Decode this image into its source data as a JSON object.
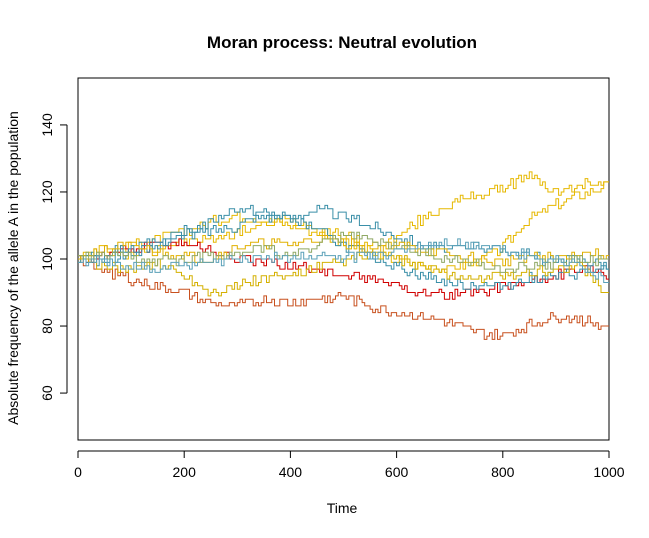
{
  "chart_data": {
    "type": "line",
    "title": "Moran process: Neutral evolution",
    "xlabel": "Time",
    "ylabel": "Absolute frequency of the allele A in the population",
    "xlim": [
      0,
      1000
    ],
    "ylim": [
      46,
      154
    ],
    "xticks": [
      0,
      200,
      400,
      600,
      800,
      1000
    ],
    "yticks": [
      60,
      80,
      100,
      120,
      140
    ],
    "grid": false,
    "legend": "none",
    "series": [
      {
        "color": "#E6B800",
        "x": [
          0,
          50,
          100,
          150,
          200,
          250,
          300,
          350,
          400,
          450,
          500,
          550,
          600,
          650,
          700,
          750,
          800,
          850,
          900,
          950,
          1000
        ],
        "y": [
          100,
          103,
          101,
          104,
          105,
          106,
          108,
          110,
          112,
          109,
          107,
          104,
          106,
          112,
          116,
          119,
          121,
          125,
          120,
          122,
          124
        ]
      },
      {
        "color": "#E6B800",
        "x": [
          0,
          50,
          100,
          150,
          200,
          250,
          300,
          350,
          400,
          450,
          500,
          550,
          600,
          650,
          700,
          750,
          800,
          850,
          900,
          950,
          1000
        ],
        "y": [
          100,
          102,
          104,
          106,
          108,
          111,
          113,
          112,
          110,
          108,
          105,
          102,
          100,
          98,
          97,
          99,
          103,
          112,
          116,
          119,
          122
        ]
      },
      {
        "color": "#C8501E",
        "x": [
          0,
          50,
          100,
          150,
          200,
          250,
          300,
          350,
          400,
          450,
          500,
          550,
          600,
          650,
          700,
          750,
          800,
          850,
          900,
          950,
          1000
        ],
        "y": [
          100,
          97,
          94,
          92,
          90,
          87,
          86,
          88,
          87,
          88,
          89,
          86,
          84,
          83,
          81,
          78,
          77,
          80,
          83,
          82,
          80
        ]
      },
      {
        "color": "#D00000",
        "x": [
          0,
          50,
          100,
          150,
          200,
          250,
          300,
          350,
          400,
          450,
          500,
          550,
          600,
          650,
          700,
          750,
          800,
          850,
          900,
          950,
          1000
        ],
        "y": [
          100,
          101,
          103,
          104,
          105,
          103,
          100,
          99,
          98,
          97,
          95,
          94,
          92,
          90,
          89,
          90,
          92,
          93,
          95,
          97,
          95
        ]
      },
      {
        "color": "#3A8FA8",
        "x": [
          0,
          50,
          100,
          150,
          200,
          250,
          300,
          350,
          400,
          450,
          500,
          550,
          600,
          650,
          700,
          750,
          800,
          850,
          900,
          950,
          1000
        ],
        "y": [
          100,
          99,
          102,
          104,
          108,
          111,
          115,
          114,
          112,
          109,
          104,
          101,
          98,
          95,
          93,
          92,
          92,
          94,
          95,
          96,
          97
        ]
      },
      {
        "color": "#3A8FA8",
        "x": [
          0,
          50,
          100,
          150,
          200,
          250,
          300,
          350,
          400,
          450,
          500,
          550,
          600,
          650,
          700,
          750,
          800,
          850,
          900,
          950,
          1000
        ],
        "y": [
          100,
          102,
          103,
          105,
          107,
          108,
          110,
          113,
          112,
          115,
          113,
          110,
          107,
          104,
          103,
          104,
          103,
          101,
          99,
          100,
          98
        ]
      },
      {
        "color": "#D4B000",
        "x": [
          0,
          50,
          100,
          150,
          200,
          250,
          300,
          350,
          400,
          450,
          500,
          550,
          600,
          650,
          700,
          750,
          800,
          850,
          900,
          950,
          1000
        ],
        "y": [
          100,
          98,
          97,
          99,
          95,
          90,
          92,
          94,
          95,
          97,
          99,
          101,
          100,
          98,
          95,
          94,
          95,
          96,
          97,
          98,
          89
        ]
      },
      {
        "color": "#E0B000",
        "x": [
          0,
          50,
          100,
          150,
          200,
          250,
          300,
          350,
          400,
          450,
          500,
          550,
          600,
          650,
          700,
          750,
          800,
          850,
          900,
          950,
          1000
        ],
        "y": [
          100,
          103,
          104,
          102,
          101,
          100,
          103,
          105,
          104,
          106,
          105,
          103,
          104,
          103,
          101,
          100,
          99,
          101,
          100,
          102,
          101
        ]
      },
      {
        "color": "#8FA864",
        "x": [
          0,
          50,
          100,
          150,
          200,
          250,
          300,
          350,
          400,
          450,
          500,
          550,
          600,
          650,
          700,
          750,
          800,
          850,
          900,
          950,
          1000
        ],
        "y": [
          100,
          101,
          100,
          99,
          100,
          101,
          102,
          103,
          101,
          104,
          107,
          106,
          104,
          102,
          100,
          99,
          97,
          98,
          99,
          100,
          99
        ]
      },
      {
        "color": "#5AA0B8",
        "x": [
          0,
          50,
          100,
          150,
          200,
          250,
          300,
          350,
          400,
          450,
          500,
          550,
          600,
          650,
          700,
          750,
          800,
          850,
          900,
          950,
          1000
        ],
        "y": [
          100,
          99,
          98,
          97,
          98,
          99,
          100,
          101,
          100,
          101,
          100,
          101,
          102,
          104,
          105,
          104,
          103,
          101,
          100,
          98,
          93
        ]
      }
    ]
  }
}
